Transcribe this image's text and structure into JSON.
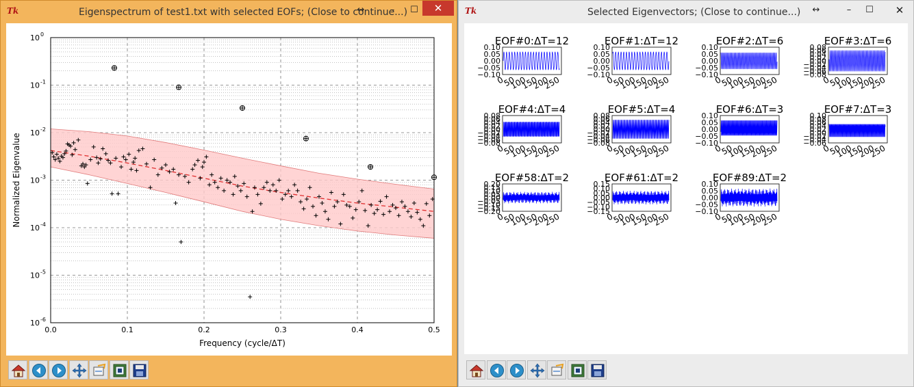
{
  "left_window": {
    "title": "Eigenspectrum of test1.txt with selected EOFs; (Close to continue...)",
    "icon": "tk-icon",
    "controls": [
      "minimize",
      "maximize",
      "close"
    ]
  },
  "right_window": {
    "title": "Selected Eigenvectors; (Close to continue...)",
    "icon": "tk-icon",
    "controls": [
      "resize",
      "minimize",
      "maximize",
      "close"
    ]
  },
  "toolbar": {
    "buttons": [
      {
        "name": "home",
        "icon": "home-icon"
      },
      {
        "name": "back",
        "icon": "back-arrow-icon"
      },
      {
        "name": "forward",
        "icon": "forward-arrow-icon"
      },
      {
        "name": "pan",
        "icon": "pan-icon"
      },
      {
        "name": "zoom",
        "icon": "zoom-rect-icon"
      },
      {
        "name": "configure-subplots",
        "icon": "subplots-icon"
      },
      {
        "name": "save",
        "icon": "save-icon"
      }
    ]
  },
  "colors": {
    "band_fill": "#ffc9c9",
    "band_edge": "#e07a7a",
    "mean_line": "#e03030",
    "eigvec_line": "#0000ff",
    "active_border": "#f3b55c"
  },
  "chart_data": [
    {
      "type": "scatter",
      "xlabel": "Frequency (cycle/ΔT)",
      "ylabel": "Normalized Eigenvalue",
      "xlim": [
        0.0,
        0.5
      ],
      "ylim": [
        1e-06,
        1
      ],
      "yscale": "log",
      "x_ticks": [
        "0.0",
        "0.1",
        "0.2",
        "0.3",
        "0.4",
        "0.5"
      ],
      "y_ticks": [
        {
          "base": "10",
          "exp": "0"
        },
        {
          "base": "10",
          "exp": "-1"
        },
        {
          "base": "10",
          "exp": "-2"
        },
        {
          "base": "10",
          "exp": "-3"
        },
        {
          "base": "10",
          "exp": "-4"
        },
        {
          "base": "10",
          "exp": "-5"
        },
        {
          "base": "10",
          "exp": "-6"
        }
      ],
      "grid": true,
      "selected_points": [
        {
          "x": 0.083,
          "y": 0.23
        },
        {
          "x": 0.167,
          "y": 0.09
        },
        {
          "x": 0.25,
          "y": 0.033
        },
        {
          "x": 0.333,
          "y": 0.0075
        },
        {
          "x": 0.417,
          "y": 0.0019
        },
        {
          "x": 0.5,
          "y": 0.00115
        }
      ],
      "points": [
        {
          "x": 0.002,
          "y": 0.0038
        },
        {
          "x": 0.004,
          "y": 0.0031
        },
        {
          "x": 0.006,
          "y": 0.0027
        },
        {
          "x": 0.008,
          "y": 0.0035
        },
        {
          "x": 0.01,
          "y": 0.0029
        },
        {
          "x": 0.012,
          "y": 0.0025
        },
        {
          "x": 0.014,
          "y": 0.0032
        },
        {
          "x": 0.016,
          "y": 0.003
        },
        {
          "x": 0.018,
          "y": 0.0036
        },
        {
          "x": 0.02,
          "y": 0.0041
        },
        {
          "x": 0.022,
          "y": 0.0058
        },
        {
          "x": 0.024,
          "y": 0.0055
        },
        {
          "x": 0.026,
          "y": 0.0052
        },
        {
          "x": 0.028,
          "y": 0.0034
        },
        {
          "x": 0.03,
          "y": 0.0061
        },
        {
          "x": 0.032,
          "y": 0.0044
        },
        {
          "x": 0.036,
          "y": 0.007
        },
        {
          "x": 0.04,
          "y": 0.002
        },
        {
          "x": 0.042,
          "y": 0.0022
        },
        {
          "x": 0.044,
          "y": 0.0019
        },
        {
          "x": 0.046,
          "y": 0.0021
        },
        {
          "x": 0.048,
          "y": 0.00085
        },
        {
          "x": 0.052,
          "y": 0.0027
        },
        {
          "x": 0.056,
          "y": 0.005
        },
        {
          "x": 0.06,
          "y": 0.003
        },
        {
          "x": 0.062,
          "y": 0.0023
        },
        {
          "x": 0.065,
          "y": 0.0028
        },
        {
          "x": 0.068,
          "y": 0.0046
        },
        {
          "x": 0.072,
          "y": 0.0036
        },
        {
          "x": 0.075,
          "y": 0.0026
        },
        {
          "x": 0.078,
          "y": 0.0023
        },
        {
          "x": 0.08,
          "y": 0.00052
        },
        {
          "x": 0.085,
          "y": 0.0029
        },
        {
          "x": 0.088,
          "y": 0.00052
        },
        {
          "x": 0.092,
          "y": 0.0019
        },
        {
          "x": 0.095,
          "y": 0.0031
        },
        {
          "x": 0.098,
          "y": 0.0027
        },
        {
          "x": 0.102,
          "y": 0.0035
        },
        {
          "x": 0.105,
          "y": 0.0017
        },
        {
          "x": 0.108,
          "y": 0.0024
        },
        {
          "x": 0.11,
          "y": 0.0029
        },
        {
          "x": 0.112,
          "y": 0.0016
        },
        {
          "x": 0.115,
          "y": 0.0042
        },
        {
          "x": 0.12,
          "y": 0.0046
        },
        {
          "x": 0.125,
          "y": 0.0022
        },
        {
          "x": 0.13,
          "y": 0.0007
        },
        {
          "x": 0.135,
          "y": 0.0027
        },
        {
          "x": 0.14,
          "y": 0.0013
        },
        {
          "x": 0.145,
          "y": 0.0018
        },
        {
          "x": 0.15,
          "y": 0.0021
        },
        {
          "x": 0.155,
          "y": 0.0015
        },
        {
          "x": 0.16,
          "y": 0.0017
        },
        {
          "x": 0.163,
          "y": 0.00033
        },
        {
          "x": 0.167,
          "y": 0.0013
        },
        {
          "x": 0.17,
          "y": 5e-05
        },
        {
          "x": 0.175,
          "y": 0.0012
        },
        {
          "x": 0.18,
          "y": 0.0009
        },
        {
          "x": 0.185,
          "y": 0.0017
        },
        {
          "x": 0.188,
          "y": 0.0021
        },
        {
          "x": 0.192,
          "y": 0.0026
        },
        {
          "x": 0.195,
          "y": 0.0011
        },
        {
          "x": 0.198,
          "y": 0.0019
        },
        {
          "x": 0.2,
          "y": 0.0024
        },
        {
          "x": 0.203,
          "y": 0.0031
        },
        {
          "x": 0.207,
          "y": 0.0008
        },
        {
          "x": 0.21,
          "y": 0.0013
        },
        {
          "x": 0.214,
          "y": 0.0009
        },
        {
          "x": 0.218,
          "y": 0.0007
        },
        {
          "x": 0.222,
          "y": 0.0011
        },
        {
          "x": 0.226,
          "y": 0.0006
        },
        {
          "x": 0.23,
          "y": 0.001
        },
        {
          "x": 0.234,
          "y": 0.0009
        },
        {
          "x": 0.238,
          "y": 0.0005
        },
        {
          "x": 0.24,
          "y": 0.0012
        },
        {
          "x": 0.244,
          "y": 0.00075
        },
        {
          "x": 0.248,
          "y": 0.0006
        },
        {
          "x": 0.252,
          "y": 0.00085
        },
        {
          "x": 0.256,
          "y": 0.00045
        },
        {
          "x": 0.26,
          "y": 3.5e-06
        },
        {
          "x": 0.263,
          "y": 0.00022
        },
        {
          "x": 0.266,
          "y": 0.0007
        },
        {
          "x": 0.27,
          "y": 0.0005
        },
        {
          "x": 0.274,
          "y": 0.00032
        },
        {
          "x": 0.278,
          "y": 0.0007
        },
        {
          "x": 0.282,
          "y": 0.0009
        },
        {
          "x": 0.286,
          "y": 0.0006
        },
        {
          "x": 0.29,
          "y": 0.0008
        },
        {
          "x": 0.294,
          "y": 0.0006
        },
        {
          "x": 0.298,
          "y": 0.001
        },
        {
          "x": 0.302,
          "y": 0.0004
        },
        {
          "x": 0.306,
          "y": 0.0005
        },
        {
          "x": 0.31,
          "y": 0.0006
        },
        {
          "x": 0.314,
          "y": 0.00045
        },
        {
          "x": 0.318,
          "y": 0.0008
        },
        {
          "x": 0.322,
          "y": 0.0006
        },
        {
          "x": 0.326,
          "y": 0.00035
        },
        {
          "x": 0.33,
          "y": 0.00025
        },
        {
          "x": 0.334,
          "y": 0.0004
        },
        {
          "x": 0.338,
          "y": 0.0007
        },
        {
          "x": 0.342,
          "y": 0.00028
        },
        {
          "x": 0.346,
          "y": 0.00018
        },
        {
          "x": 0.35,
          "y": 0.00045
        },
        {
          "x": 0.354,
          "y": 0.00033
        },
        {
          "x": 0.358,
          "y": 0.00022
        },
        {
          "x": 0.362,
          "y": 0.00015
        },
        {
          "x": 0.366,
          "y": 0.00055
        },
        {
          "x": 0.37,
          "y": 0.00028
        },
        {
          "x": 0.374,
          "y": 0.00035
        },
        {
          "x": 0.378,
          "y": 0.00012
        },
        {
          "x": 0.382,
          "y": 0.0005
        },
        {
          "x": 0.386,
          "y": 0.0003
        },
        {
          "x": 0.39,
          "y": 0.00028
        },
        {
          "x": 0.394,
          "y": 0.00016
        },
        {
          "x": 0.398,
          "y": 0.00024
        },
        {
          "x": 0.402,
          "y": 0.00035
        },
        {
          "x": 0.406,
          "y": 0.0006
        },
        {
          "x": 0.41,
          "y": 0.00023
        },
        {
          "x": 0.414,
          "y": 0.00011
        },
        {
          "x": 0.418,
          "y": 0.0003
        },
        {
          "x": 0.422,
          "y": 0.0002
        },
        {
          "x": 0.426,
          "y": 0.00024
        },
        {
          "x": 0.43,
          "y": 0.00036
        },
        {
          "x": 0.434,
          "y": 0.00019
        },
        {
          "x": 0.438,
          "y": 0.00045
        },
        {
          "x": 0.442,
          "y": 0.00022
        },
        {
          "x": 0.446,
          "y": 0.0003
        },
        {
          "x": 0.45,
          "y": 0.00026
        },
        {
          "x": 0.454,
          "y": 0.00018
        },
        {
          "x": 0.458,
          "y": 0.00035
        },
        {
          "x": 0.462,
          "y": 0.00028
        },
        {
          "x": 0.466,
          "y": 0.00022
        },
        {
          "x": 0.47,
          "y": 0.00017
        },
        {
          "x": 0.474,
          "y": 0.00033
        },
        {
          "x": 0.478,
          "y": 0.00021
        },
        {
          "x": 0.482,
          "y": 0.00015
        },
        {
          "x": 0.486,
          "y": 0.00011
        },
        {
          "x": 0.49,
          "y": 0.00032
        },
        {
          "x": 0.494,
          "y": 0.00018
        },
        {
          "x": 0.498,
          "y": 0.0004
        }
      ],
      "mean_line": [
        {
          "x": 0.0,
          "y": 0.0042
        },
        {
          "x": 0.05,
          "y": 0.0032
        },
        {
          "x": 0.1,
          "y": 0.0023
        },
        {
          "x": 0.15,
          "y": 0.0016
        },
        {
          "x": 0.2,
          "y": 0.0011
        },
        {
          "x": 0.25,
          "y": 0.00075
        },
        {
          "x": 0.3,
          "y": 0.00055
        },
        {
          "x": 0.35,
          "y": 0.00042
        },
        {
          "x": 0.4,
          "y": 0.00033
        },
        {
          "x": 0.45,
          "y": 0.00027
        },
        {
          "x": 0.5,
          "y": 0.00022
        }
      ],
      "band_upper": [
        {
          "x": 0.0,
          "y": 0.012
        },
        {
          "x": 0.05,
          "y": 0.0105
        },
        {
          "x": 0.1,
          "y": 0.0085
        },
        {
          "x": 0.15,
          "y": 0.0062
        },
        {
          "x": 0.2,
          "y": 0.0043
        },
        {
          "x": 0.25,
          "y": 0.0029
        },
        {
          "x": 0.3,
          "y": 0.002
        },
        {
          "x": 0.35,
          "y": 0.0014
        },
        {
          "x": 0.4,
          "y": 0.00105
        },
        {
          "x": 0.45,
          "y": 0.00082
        },
        {
          "x": 0.5,
          "y": 0.00065
        }
      ],
      "band_lower": [
        {
          "x": 0.0,
          "y": 0.0019
        },
        {
          "x": 0.05,
          "y": 0.0013
        },
        {
          "x": 0.1,
          "y": 0.00085
        },
        {
          "x": 0.15,
          "y": 0.00055
        },
        {
          "x": 0.2,
          "y": 0.00035
        },
        {
          "x": 0.25,
          "y": 0.00022
        },
        {
          "x": 0.3,
          "y": 0.00015
        },
        {
          "x": 0.35,
          "y": 0.00011
        },
        {
          "x": 0.4,
          "y": 8.5e-05
        },
        {
          "x": 0.45,
          "y": 7e-05
        },
        {
          "x": 0.5,
          "y": 6e-05
        }
      ]
    },
    {
      "type": "line",
      "panels": [
        {
          "title": "EOF#0:ΔT=12",
          "period": 12,
          "amp": 0.07,
          "yticks": [
            "0.10",
            "0.05",
            "0.00",
            "−0.05",
            "−0.10"
          ],
          "xticks": [
            "0",
            "50",
            "100",
            "150",
            "200",
            "250"
          ]
        },
        {
          "title": "EOF#1:ΔT=12",
          "period": 12,
          "amp": 0.07,
          "yticks": [
            "0.10",
            "0.05",
            "0.00",
            "−0.05",
            "−0.10"
          ],
          "xticks": [
            "0",
            "50",
            "100",
            "150",
            "200",
            "250"
          ]
        },
        {
          "title": "EOF#2:ΔT=6",
          "period": 6,
          "amp": 0.07,
          "yticks": [
            "0.10",
            "0.05",
            "0.00",
            "−0.05",
            "−0.10"
          ],
          "xticks": [
            "0",
            "50",
            "100",
            "150",
            "200",
            "250"
          ]
        },
        {
          "title": "EOF#3:ΔT=6",
          "period": 6,
          "amp": 0.07,
          "yticks": [
            "0.08",
            "0.06",
            "0.04",
            "0.02",
            "0.00",
            "−0.02",
            "−0.04",
            "−0.06",
            "−0.08"
          ],
          "xticks": [
            "0",
            "50",
            "100",
            "150",
            "200",
            "250"
          ]
        },
        {
          "title": "EOF#4:ΔT=4",
          "period": 4,
          "amp": 0.06,
          "yticks": [
            "0.08",
            "0.06",
            "0.04",
            "0.02",
            "0.00",
            "−0.02",
            "−0.04",
            "−0.06",
            "−0.08"
          ],
          "xticks": [
            "0",
            "50",
            "100",
            "150",
            "200",
            "250"
          ]
        },
        {
          "title": "EOF#5:ΔT=4",
          "period": 4,
          "amp": 0.06,
          "yticks": [
            "0.08",
            "0.06",
            "0.04",
            "0.02",
            "0.00",
            "−0.02",
            "−0.04",
            "−0.06",
            "−0.08"
          ],
          "xticks": [
            "0",
            "50",
            "100",
            "150",
            "200",
            "250"
          ]
        },
        {
          "title": "EOF#6:ΔT=3",
          "period": 3,
          "amp": 0.07,
          "yticks": [
            "0.10",
            "0.05",
            "0.00",
            "−0.05",
            "−0.10"
          ],
          "xticks": [
            "0",
            "50",
            "100",
            "150",
            "200",
            "250"
          ]
        },
        {
          "title": "EOF#7:ΔT=3",
          "period": 3,
          "amp": 0.06,
          "yticks": [
            "0.10",
            "0.08",
            "0.06",
            "0.04",
            "0.02",
            "0.00",
            "−0.02",
            "−0.04",
            "−0.06"
          ],
          "xticks": [
            "0",
            "50",
            "100",
            "150",
            "200",
            "250"
          ]
        },
        {
          "title": "EOF#58:ΔT=2",
          "period": 2,
          "amp": 0.09,
          "yticks": [
            "0.20",
            "0.15",
            "0.10",
            "0.05",
            "0.00",
            "−0.05",
            "−0.10",
            "−0.15",
            "−0.20"
          ],
          "xticks": [
            "0",
            "50",
            "100",
            "150",
            "200",
            "250"
          ]
        },
        {
          "title": "EOF#61:ΔT=2",
          "period": 2,
          "amp": 0.08,
          "yticks": [
            "0.15",
            "0.10",
            "0.05",
            "0.00",
            "−0.05",
            "−0.10",
            "−0.15"
          ],
          "xticks": [
            "0",
            "50",
            "100",
            "150",
            "200",
            "250"
          ]
        },
        {
          "title": "EOF#89:ΔT=2",
          "period": 2,
          "amp": 0.07,
          "yticks": [
            "0.10",
            "0.05",
            "0.00",
            "−0.05",
            "−0.10"
          ],
          "xticks": [
            "0",
            "50",
            "100",
            "150",
            "200",
            "250"
          ]
        }
      ]
    }
  ]
}
